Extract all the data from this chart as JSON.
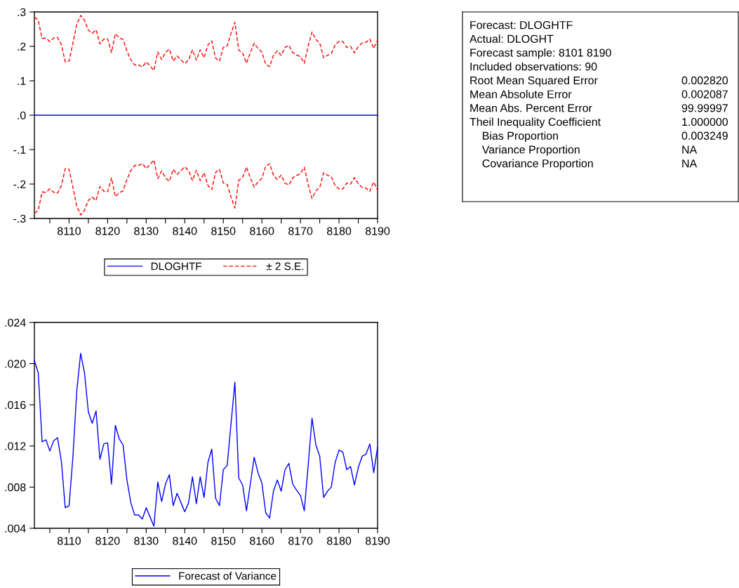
{
  "chart_data": [
    {
      "type": "line",
      "x": [
        8101,
        8102,
        8103,
        8104,
        8105,
        8106,
        8107,
        8108,
        8109,
        8110,
        8111,
        8112,
        8113,
        8114,
        8115,
        8116,
        8117,
        8118,
        8119,
        8120,
        8121,
        8122,
        8123,
        8124,
        8125,
        8126,
        8127,
        8128,
        8129,
        8130,
        8131,
        8132,
        8133,
        8134,
        8135,
        8136,
        8137,
        8138,
        8139,
        8140,
        8141,
        8142,
        8143,
        8144,
        8145,
        8146,
        8147,
        8148,
        8149,
        8150,
        8151,
        8152,
        8153,
        8154,
        8155,
        8156,
        8157,
        8158,
        8159,
        8160,
        8161,
        8162,
        8163,
        8164,
        8165,
        8166,
        8167,
        8168,
        8169,
        8170,
        8171,
        8172,
        8173,
        8174,
        8175,
        8176,
        8177,
        8178,
        8179,
        8180,
        8181,
        8182,
        8183,
        8184,
        8185,
        8186,
        8187,
        8188,
        8189,
        8190
      ],
      "xlim": [
        8101,
        8190
      ],
      "xticks": [
        {
          "value": 8105,
          "label": null
        },
        8110,
        {
          "value": 8115,
          "label": null
        },
        8120,
        {
          "value": 8125,
          "label": null
        },
        8130,
        {
          "value": 8135,
          "label": null
        },
        8140,
        {
          "value": 8145,
          "label": null
        },
        8150,
        {
          "value": 8155,
          "label": null
        },
        8160,
        {
          "value": 8165,
          "label": null
        },
        8170,
        {
          "value": 8175,
          "label": null
        },
        8180,
        {
          "value": 8185,
          "label": null
        },
        8190
      ],
      "ylim": [
        -0.3,
        0.3
      ],
      "yticks": [
        {
          "value": -0.3,
          "label": "-.3"
        },
        {
          "value": -0.2,
          "label": "-.2"
        },
        {
          "value": -0.1,
          "label": "-.1"
        },
        {
          "value": 0,
          "label": ".0"
        },
        {
          "value": 0.1,
          "label": ".1"
        },
        {
          "value": 0.2,
          "label": ".2"
        },
        {
          "value": 0.3,
          "label": ".3"
        }
      ],
      "legend": "bottom",
      "grid": false,
      "series": [
        {
          "name": "DLOGHTF",
          "color": "#0000ff",
          "line_style": "solid",
          "values": [
            0,
            0,
            0,
            0,
            0,
            0,
            0,
            0,
            0,
            0,
            0,
            0,
            0,
            0,
            0,
            0,
            0,
            0,
            0,
            0,
            0,
            0,
            0,
            0,
            0,
            0,
            0,
            0,
            0,
            0,
            0,
            0,
            0,
            0,
            0,
            0,
            0,
            0,
            0,
            0,
            0,
            0,
            0,
            0,
            0,
            0,
            0,
            0,
            0,
            0,
            0,
            0,
            0,
            0,
            0,
            0,
            0,
            0,
            0,
            0,
            0,
            0,
            0,
            0,
            0,
            0,
            0,
            0,
            0,
            0,
            0,
            0,
            0,
            0,
            0,
            0,
            0,
            0,
            0,
            0,
            0,
            0,
            0,
            0,
            0,
            0,
            0,
            0,
            0,
            0
          ]
        },
        {
          "name": "± 2 S.E.",
          "color": "#ff0000",
          "line_style": "dashed",
          "values": [
            0.285,
            0.276,
            0.223,
            0.224,
            0.214,
            0.224,
            0.226,
            0.205,
            0.155,
            0.157,
            0.21,
            0.264,
            0.29,
            0.276,
            0.247,
            0.238,
            0.248,
            0.207,
            0.221,
            0.222,
            0.182,
            0.237,
            0.225,
            0.22,
            0.187,
            0.161,
            0.146,
            0.146,
            0.14,
            0.155,
            0.143,
            0.13,
            0.184,
            0.162,
            0.182,
            0.192,
            0.157,
            0.172,
            0.161,
            0.15,
            0.161,
            0.19,
            0.16,
            0.19,
            0.167,
            0.204,
            0.216,
            0.166,
            0.157,
            0.197,
            0.201,
            0.238,
            0.27,
            0.189,
            0.181,
            0.151,
            0.182,
            0.209,
            0.194,
            0.183,
            0.148,
            0.141,
            0.174,
            0.187,
            0.174,
            0.197,
            0.203,
            0.182,
            0.175,
            0.17,
            0.151,
            0.201,
            0.242,
            0.22,
            0.21,
            0.167,
            0.174,
            0.179,
            0.204,
            0.215,
            0.214,
            0.197,
            0.2,
            0.181,
            0.199,
            0.21,
            0.212,
            0.221,
            0.194,
            0.218
          ]
        },
        {
          "color": "#ff0000",
          "line_style": "dashed",
          "values": [
            -0.285,
            -0.276,
            -0.223,
            -0.224,
            -0.214,
            -0.224,
            -0.226,
            -0.205,
            -0.155,
            -0.157,
            -0.21,
            -0.264,
            -0.29,
            -0.276,
            -0.247,
            -0.238,
            -0.248,
            -0.207,
            -0.221,
            -0.222,
            -0.182,
            -0.237,
            -0.225,
            -0.22,
            -0.187,
            -0.161,
            -0.146,
            -0.146,
            -0.14,
            -0.155,
            -0.143,
            -0.13,
            -0.184,
            -0.162,
            -0.182,
            -0.192,
            -0.157,
            -0.172,
            -0.161,
            -0.15,
            -0.161,
            -0.19,
            -0.16,
            -0.19,
            -0.167,
            -0.204,
            -0.216,
            -0.166,
            -0.157,
            -0.197,
            -0.201,
            -0.238,
            -0.27,
            -0.189,
            -0.181,
            -0.151,
            -0.182,
            -0.209,
            -0.194,
            -0.183,
            -0.148,
            -0.141,
            -0.174,
            -0.187,
            -0.174,
            -0.197,
            -0.203,
            -0.182,
            -0.175,
            -0.17,
            -0.151,
            -0.201,
            -0.242,
            -0.22,
            -0.21,
            -0.167,
            -0.174,
            -0.179,
            -0.204,
            -0.215,
            -0.214,
            -0.197,
            -0.2,
            -0.181,
            -0.199,
            -0.21,
            -0.212,
            -0.221,
            -0.194,
            -0.218
          ]
        }
      ]
    },
    {
      "type": "other",
      "categories": [
        "Forecast: DLOGHTF",
        "Actual: DLOGHT",
        "Forecast sample: 8101 8190",
        "Included observations: 90",
        "Root Mean Squared Error",
        "Mean Absolute Error",
        "Mean Abs. Percent Error",
        "Theil Inequality Coefficient",
        "    Bias Proportion",
        "    Variance Proportion",
        "    Covariance Proportion"
      ],
      "value_labels": [
        null,
        null,
        null,
        null,
        "0.002820",
        "0.002087",
        "99.99997",
        "1.000000",
        "0.003249",
        "NA",
        "NA"
      ]
    },
    {
      "type": "line",
      "x": [
        8101,
        8102,
        8103,
        8104,
        8105,
        8106,
        8107,
        8108,
        8109,
        8110,
        8111,
        8112,
        8113,
        8114,
        8115,
        8116,
        8117,
        8118,
        8119,
        8120,
        8121,
        8122,
        8123,
        8124,
        8125,
        8126,
        8127,
        8128,
        8129,
        8130,
        8131,
        8132,
        8133,
        8134,
        8135,
        8136,
        8137,
        8138,
        8139,
        8140,
        8141,
        8142,
        8143,
        8144,
        8145,
        8146,
        8147,
        8148,
        8149,
        8150,
        8151,
        8152,
        8153,
        8154,
        8155,
        8156,
        8157,
        8158,
        8159,
        8160,
        8161,
        8162,
        8163,
        8164,
        8165,
        8166,
        8167,
        8168,
        8169,
        8170,
        8171,
        8172,
        8173,
        8174,
        8175,
        8176,
        8177,
        8178,
        8179,
        8180,
        8181,
        8182,
        8183,
        8184,
        8185,
        8186,
        8187,
        8188,
        8189,
        8190
      ],
      "xlim": [
        8101,
        8190
      ],
      "xticks": [
        {
          "value": 8105,
          "label": null
        },
        8110,
        {
          "value": 8115,
          "label": null
        },
        8120,
        {
          "value": 8125,
          "label": null
        },
        8130,
        {
          "value": 8135,
          "label": null
        },
        8140,
        {
          "value": 8145,
          "label": null
        },
        8150,
        {
          "value": 8155,
          "label": null
        },
        8160,
        {
          "value": 8165,
          "label": null
        },
        8170,
        {
          "value": 8175,
          "label": null
        },
        8180,
        {
          "value": 8185,
          "label": null
        },
        8190
      ],
      "ylim": [
        0.004,
        0.024
      ],
      "yticks": [
        {
          "value": 0.004,
          "label": ".004"
        },
        {
          "value": 0.008,
          "label": ".008"
        },
        {
          "value": 0.012,
          "label": ".012"
        },
        {
          "value": 0.016,
          "label": ".016"
        },
        {
          "value": 0.02,
          "label": ".020"
        },
        {
          "value": 0.024,
          "label": ".024"
        }
      ],
      "legend": "bottom",
      "grid": false,
      "series": [
        {
          "name": "Forecast of Variance",
          "color": "#0000ff",
          "line_style": "solid",
          "values": [
            0.0203,
            0.0191,
            0.0124,
            0.0126,
            0.0115,
            0.0125,
            0.0128,
            0.0105,
            0.006,
            0.0062,
            0.011,
            0.0174,
            0.021,
            0.0191,
            0.0153,
            0.0142,
            0.0154,
            0.0107,
            0.0122,
            0.0123,
            0.0083,
            0.014,
            0.0127,
            0.0121,
            0.0087,
            0.0065,
            0.0053,
            0.0053,
            0.0049,
            0.006,
            0.0051,
            0.0042,
            0.0085,
            0.0066,
            0.0083,
            0.0092,
            0.0062,
            0.0074,
            0.0065,
            0.0056,
            0.0065,
            0.009,
            0.0064,
            0.009,
            0.007,
            0.0104,
            0.0117,
            0.0069,
            0.0062,
            0.0097,
            0.0101,
            0.0142,
            0.0182,
            0.0089,
            0.0082,
            0.0057,
            0.0083,
            0.0109,
            0.0094,
            0.0084,
            0.0055,
            0.005,
            0.0076,
            0.0087,
            0.0076,
            0.0097,
            0.0103,
            0.0083,
            0.0077,
            0.0072,
            0.0057,
            0.0101,
            0.0147,
            0.0121,
            0.011,
            0.007,
            0.0076,
            0.008,
            0.0104,
            0.0116,
            0.0114,
            0.0097,
            0.01,
            0.0082,
            0.0099,
            0.011,
            0.0112,
            0.0122,
            0.0094,
            0.0119
          ]
        }
      ]
    }
  ]
}
